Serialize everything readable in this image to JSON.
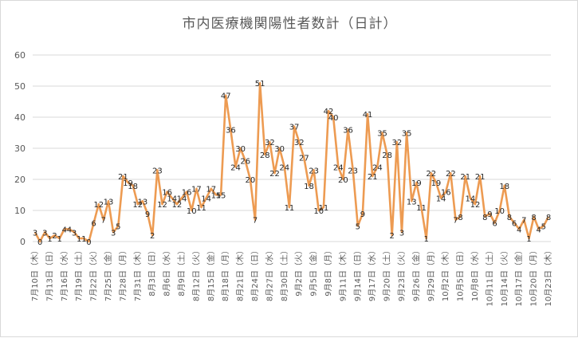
{
  "chart_data": {
    "type": "line",
    "title": "市内医療機関陽性者数計（日計）",
    "xlabel": "",
    "ylabel": "",
    "ylim": [
      0,
      60
    ],
    "yticks": [
      0,
      10,
      20,
      30,
      40,
      50,
      60
    ],
    "grid": true,
    "legend": "none",
    "color": "#ED9B52",
    "categories": [
      "7月10日（木）",
      "7月11日",
      "7月12日",
      "7月13日（日）",
      "7月14日",
      "7月15日",
      "7月16日（水）",
      "7月17日",
      "7月18日",
      "7月19日（土）",
      "7月20日",
      "7月21日",
      "7月22日（火）",
      "7月23日",
      "7月24日",
      "7月25日（金）",
      "7月26日",
      "7月27日",
      "7月28日（月）",
      "7月29日",
      "7月30日",
      "7月31日（木）",
      "8月1日",
      "8月2日",
      "8月3日（日）",
      "8月4日",
      "8月5日",
      "8月6日（水）",
      "8月7日",
      "8月8日",
      "8月9日（土）",
      "8月10日",
      "8月11日",
      "8月12日（火）",
      "8月13日",
      "8月14日",
      "8月15日（金）",
      "8月16日",
      "8月17日",
      "8月18日（月）",
      "8月19日",
      "8月20日",
      "8月21日（木）",
      "8月22日",
      "8月23日",
      "8月24日（日）",
      "8月25日",
      "8月26日",
      "8月27日（水）",
      "8月28日",
      "8月29日",
      "8月30日（土）",
      "8月31日",
      "9月1日",
      "9月2日（火）",
      "9月3日",
      "9月4日",
      "9月5日（金）",
      "9月6日",
      "9月7日",
      "9月8日（月）",
      "9月9日",
      "9月10日",
      "9月11日（木）",
      "9月12日",
      "9月13日",
      "9月14日（日）",
      "9月15日",
      "9月16日",
      "9月17日（水）",
      "9月18日",
      "9月19日",
      "9月20日（土）",
      "9月21日",
      "9月22日",
      "9月23日（火）",
      "9月24日",
      "9月25日",
      "9月26日（金）",
      "9月27日",
      "9月28日",
      "9月29日（月）",
      "9月30日",
      "10月1日",
      "10月2日（木）",
      "10月3日",
      "10月4日",
      "10月5日（日）",
      "10月6日",
      "10月7日",
      "10月8日（水）",
      "10月9日",
      "10月10日",
      "10月11日（土）",
      "10月12日",
      "10月13日",
      "10月14日（火）",
      "10月15日",
      "10月16日",
      "10月17日（金）",
      "10月18日",
      "10月19日",
      "10月20日（月）",
      "10月21日",
      "10月22日",
      "10月23日（木）"
    ],
    "values": [
      3,
      0,
      3,
      1,
      2,
      1,
      4,
      4,
      3,
      1,
      1,
      0,
      6,
      12,
      7,
      13,
      3,
      5,
      21,
      19,
      18,
      12,
      13,
      9,
      2,
      23,
      12,
      16,
      14,
      12,
      14,
      16,
      10,
      17,
      11,
      14,
      17,
      15,
      15,
      47,
      36,
      24,
      30,
      26,
      20,
      7,
      51,
      28,
      32,
      22,
      30,
      24,
      11,
      37,
      32,
      27,
      18,
      23,
      10,
      11,
      42,
      40,
      24,
      20,
      36,
      23,
      5,
      9,
      41,
      21,
      24,
      35,
      28,
      2,
      32,
      3,
      35,
      13,
      19,
      11,
      1,
      22,
      19,
      14,
      16,
      22,
      7,
      8,
      21,
      14,
      12,
      21,
      8,
      9,
      6,
      10,
      18,
      8,
      6,
      4,
      7,
      1,
      8,
      4,
      5,
      8
    ],
    "tick_labels": [
      "7月10日（木）",
      "7月13日（日）",
      "7月16日（水）",
      "7月19日（土）",
      "7月22日（火）",
      "7月25日（金）",
      "7月28日（月）",
      "7月31日（木）",
      "8月3日（日）",
      "8月6日（水）",
      "8月9日（土）",
      "8月12日（火）",
      "8月15日（金）",
      "8月18日（月）",
      "8月21日（木）",
      "8月24日（日）",
      "8月27日（水）",
      "8月30日（土）",
      "9月2日（火）",
      "9月5日（金）",
      "9月8日（月）",
      "9月11日（木）",
      "9月14日（日）",
      "9月17日（水）",
      "9月20日（土）",
      "9月23日（火）",
      "9月26日（金）",
      "9月29日（月）",
      "10月2日（木）",
      "10月5日（日）",
      "10月8日（水）",
      "10月11日（土）",
      "10月14日（火）",
      "10月17日（金）",
      "10月20日（月）",
      "10月23日（木）"
    ]
  }
}
